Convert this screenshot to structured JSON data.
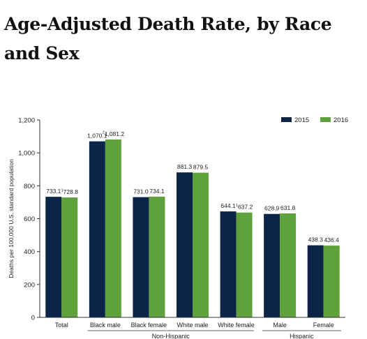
{
  "page": {
    "heading": "Age-Adjusted Death Rate, by Race and Sex"
  },
  "chart_data": {
    "type": "bar",
    "ylabel": "Deaths per 100,000 U.S. standard population",
    "ylim": [
      0,
      1200
    ],
    "yticks": [
      0,
      200,
      400,
      600,
      800,
      1000,
      1200
    ],
    "ytick_labels": [
      "0",
      "200",
      "400",
      "600",
      "800",
      "1,000",
      "1,200"
    ],
    "categories": [
      "Total",
      "Black male",
      "Black female",
      "White male",
      "White female",
      "Male",
      "Female"
    ],
    "groups": [
      {
        "label": "Non-Hispanic",
        "categories": [
          "Black male",
          "Black female",
          "White male",
          "White female"
        ]
      },
      {
        "label": "Hispanic",
        "categories": [
          "Male",
          "Female"
        ]
      }
    ],
    "series": [
      {
        "name": "2015",
        "color": "#0b2447",
        "values": [
          733.1,
          1070.1,
          731.0,
          881.3,
          644.1,
          628.9,
          438.3
        ],
        "labels": [
          "733.1",
          "1,070.1",
          "731.0",
          "881.3",
          "644.1",
          "628.9",
          "438.3"
        ],
        "label_marks": [
          "",
          "",
          "",
          "",
          "",
          "",
          ""
        ]
      },
      {
        "name": "2016",
        "color": "#5fa13a",
        "values": [
          728.8,
          1081.2,
          734.1,
          879.5,
          637.2,
          631.8,
          436.4
        ],
        "labels": [
          "728.8",
          "1,081.2",
          "734.1",
          "879.5",
          "637.2",
          "631.8",
          "436.4"
        ],
        "label_marks": [
          "1",
          "2",
          "",
          "",
          "1",
          "",
          ""
        ]
      }
    ],
    "legend_position": "top-right",
    "grid": false
  }
}
